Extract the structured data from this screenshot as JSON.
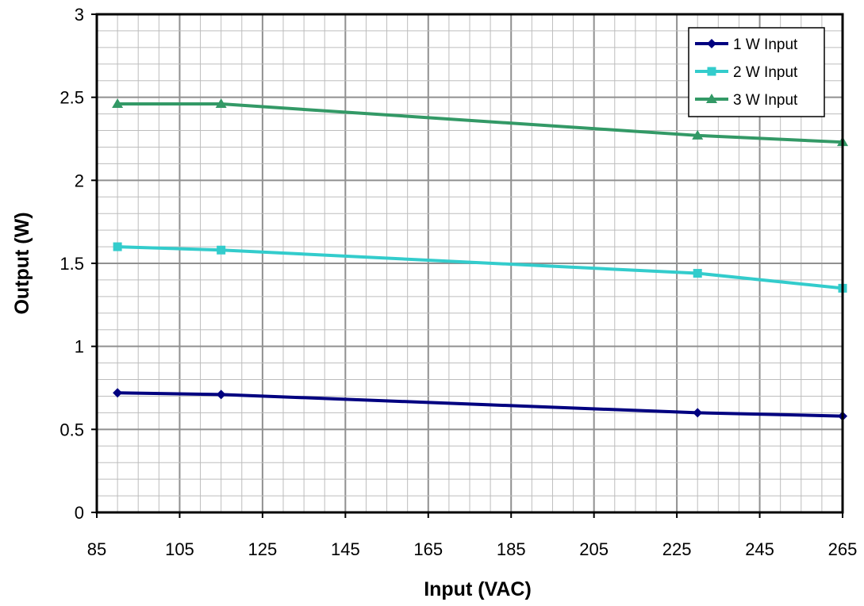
{
  "chart_data": {
    "type": "line",
    "title": "",
    "xlabel": "Input (VAC)",
    "ylabel": "Output (W)",
    "xlim": [
      85,
      265
    ],
    "ylim": [
      0,
      3
    ],
    "x_ticks": [
      85,
      105,
      125,
      145,
      165,
      185,
      205,
      225,
      245,
      265
    ],
    "y_ticks": [
      0,
      0.5,
      1,
      1.5,
      2,
      2.5,
      3
    ],
    "y_tick_labels": [
      "0",
      "0.5",
      "1",
      "1.5",
      "2",
      "2.5",
      "3"
    ],
    "grid": true,
    "legend_position": "top-right",
    "x": [
      90,
      115,
      230,
      265
    ],
    "series": [
      {
        "name": "1 W Input",
        "color": "#000080",
        "marker": "diamond",
        "values": [
          0.72,
          0.71,
          0.6,
          0.58
        ]
      },
      {
        "name": "2 W Input",
        "color": "#33CCCC",
        "marker": "square",
        "values": [
          1.6,
          1.58,
          1.44,
          1.35
        ]
      },
      {
        "name": "3 W Input",
        "color": "#339966",
        "marker": "triangle",
        "values": [
          2.46,
          2.46,
          2.27,
          2.23
        ]
      }
    ]
  }
}
